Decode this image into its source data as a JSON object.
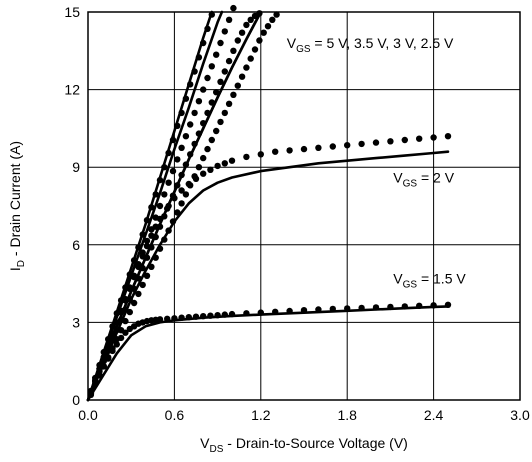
{
  "chart_data": {
    "type": "line",
    "xlabel": "V_DS - Drain-to-Source Voltage (V)",
    "ylabel": "I_D - Drain Current (A)",
    "xlim": [
      0,
      3.0
    ],
    "ylim": [
      0,
      15
    ],
    "x_ticks": [
      0.0,
      0.6,
      1.2,
      1.8,
      2.4,
      3.0
    ],
    "x_tick_labels": [
      "0.0",
      "0.6",
      "1.2",
      "1.8",
      "2.4",
      "3.0"
    ],
    "y_ticks": [
      0,
      3,
      6,
      9,
      12,
      15
    ],
    "y_tick_labels": [
      "0",
      "3",
      "6",
      "9",
      "12",
      "15"
    ],
    "grid": true,
    "colors": {
      "line": "#000000",
      "grid": "#000000",
      "background": "#ffffff"
    },
    "annotations": [
      {
        "id": "vgs-high",
        "text": "V_GS = 5 V, 3.5 V, 3 V, 2.5 V",
        "x": 1.38,
        "y": 13.6
      },
      {
        "id": "vgs-2",
        "text": "V_GS = 2 V",
        "x": 2.12,
        "y": 8.4
      },
      {
        "id": "vgs-1p5",
        "text": "V_GS = 1.5 V",
        "x": 2.12,
        "y": 4.5
      }
    ],
    "series": [
      {
        "style": "solid",
        "x": [
          0,
          0.1,
          0.2,
          0.3,
          0.4,
          0.5,
          0.6,
          0.7,
          0.8,
          0.86
        ],
        "y": [
          0,
          1.7,
          3.4,
          5.1,
          6.8,
          8.6,
          10.4,
          12.2,
          14.0,
          15.0
        ]
      },
      {
        "style": "solid",
        "x": [
          0,
          0.1,
          0.2,
          0.3,
          0.4,
          0.5,
          0.6,
          0.7,
          0.8,
          0.9,
          0.93
        ],
        "y": [
          0,
          1.6,
          3.2,
          4.8,
          6.4,
          8.0,
          9.7,
          11.3,
          13.0,
          14.6,
          15.0
        ]
      },
      {
        "style": "solid",
        "x": [
          0,
          0.1,
          0.2,
          0.3,
          0.4,
          0.5,
          0.6,
          0.7,
          0.8,
          0.9,
          1.0,
          1.1,
          1.2
        ],
        "y": [
          0,
          1.45,
          2.85,
          4.2,
          5.5,
          6.8,
          8.05,
          9.3,
          10.5,
          11.7,
          12.85,
          13.95,
          15.0
        ]
      },
      {
        "style": "solid",
        "x": [
          0,
          0.1,
          0.2,
          0.3,
          0.4,
          0.5,
          0.6,
          0.7,
          0.8,
          0.9,
          1.0,
          1.1,
          1.2
        ],
        "y": [
          0,
          1.45,
          2.85,
          4.2,
          5.5,
          6.8,
          8.05,
          9.3,
          10.5,
          11.7,
          12.85,
          13.95,
          15.0
        ]
      },
      {
        "style": "solid",
        "x": [
          0,
          0.1,
          0.2,
          0.3,
          0.4,
          0.5,
          0.6,
          0.7,
          0.8,
          0.9,
          1.0,
          1.2,
          1.4,
          1.6,
          1.8,
          2.0,
          2.2,
          2.4,
          2.5
        ],
        "y": [
          0,
          1.3,
          2.6,
          3.9,
          5.0,
          6.0,
          6.9,
          7.6,
          8.1,
          8.4,
          8.6,
          8.85,
          9.0,
          9.15,
          9.25,
          9.35,
          9.45,
          9.55,
          9.6
        ]
      },
      {
        "style": "solid",
        "x": [
          0,
          0.1,
          0.2,
          0.3,
          0.4,
          0.5,
          0.6,
          0.8,
          1.0,
          1.2,
          1.4,
          1.6,
          1.8,
          2.0,
          2.2,
          2.4,
          2.5
        ],
        "y": [
          0,
          0.9,
          1.8,
          2.5,
          2.85,
          3.0,
          3.08,
          3.18,
          3.25,
          3.3,
          3.35,
          3.4,
          3.45,
          3.5,
          3.55,
          3.6,
          3.62
        ]
      },
      {
        "style": "dots",
        "x": [
          0.02,
          0.05,
          0.08,
          0.11,
          0.14,
          0.17,
          0.2,
          0.23,
          0.26,
          0.29,
          0.32,
          0.35,
          0.38,
          0.41,
          0.44,
          0.47,
          0.5,
          0.53,
          0.56,
          0.59,
          0.62,
          0.65,
          0.68,
          0.71,
          0.74,
          0.77,
          0.8,
          0.83,
          0.86
        ],
        "y": [
          0.35,
          0.85,
          1.35,
          1.85,
          2.35,
          2.85,
          3.35,
          3.85,
          4.35,
          4.85,
          5.4,
          5.9,
          6.4,
          6.95,
          7.45,
          7.95,
          8.5,
          9.0,
          9.55,
          10.05,
          10.6,
          11.1,
          11.65,
          12.2,
          12.7,
          13.25,
          13.8,
          14.35,
          14.9
        ]
      },
      {
        "style": "dots",
        "x": [
          0.02,
          0.05,
          0.08,
          0.11,
          0.14,
          0.17,
          0.2,
          0.23,
          0.26,
          0.29,
          0.32,
          0.35,
          0.38,
          0.41,
          0.44,
          0.47,
          0.5,
          0.53,
          0.56,
          0.59,
          0.62,
          0.65,
          0.68,
          0.71,
          0.74,
          0.77,
          0.8,
          0.83,
          0.86,
          0.89,
          0.92,
          0.95,
          0.98,
          1.01
        ],
        "y": [
          0.3,
          0.75,
          1.2,
          1.65,
          2.1,
          2.55,
          3.0,
          3.45,
          3.9,
          4.35,
          4.8,
          5.25,
          5.7,
          6.15,
          6.6,
          7.05,
          7.5,
          7.95,
          8.4,
          8.85,
          9.3,
          9.75,
          10.2,
          10.65,
          11.1,
          11.55,
          12.0,
          12.45,
          12.9,
          13.35,
          13.8,
          14.25,
          14.7,
          15.15
        ]
      },
      {
        "style": "dots",
        "x": [
          0.02,
          0.05,
          0.08,
          0.11,
          0.14,
          0.17,
          0.2,
          0.23,
          0.26,
          0.29,
          0.32,
          0.35,
          0.38,
          0.41,
          0.44,
          0.47,
          0.5,
          0.53,
          0.56,
          0.59,
          0.62,
          0.65,
          0.68,
          0.71,
          0.74,
          0.77,
          0.8,
          0.83,
          0.86,
          0.89,
          0.92,
          0.95,
          0.98,
          1.01,
          1.04,
          1.07,
          1.1,
          1.13,
          1.16,
          1.19
        ],
        "y": [
          0.25,
          0.7,
          1.1,
          1.5,
          1.9,
          2.3,
          2.7,
          3.1,
          3.5,
          3.9,
          4.3,
          4.7,
          5.1,
          5.5,
          5.9,
          6.3,
          6.7,
          7.1,
          7.5,
          7.9,
          8.3,
          8.7,
          9.1,
          9.5,
          9.9,
          10.3,
          10.7,
          11.1,
          11.5,
          11.9,
          12.3,
          12.7,
          13.1,
          13.5,
          13.9,
          14.2,
          14.5,
          14.7,
          14.85,
          14.95
        ]
      },
      {
        "style": "dots",
        "x": [
          0.02,
          0.05,
          0.08,
          0.11,
          0.14,
          0.17,
          0.2,
          0.23,
          0.26,
          0.29,
          0.32,
          0.35,
          0.38,
          0.41,
          0.44,
          0.47,
          0.5,
          0.53,
          0.56,
          0.59,
          0.62,
          0.65,
          0.68,
          0.71,
          0.74,
          0.77,
          0.8,
          0.83,
          0.86,
          0.89,
          0.92,
          0.95,
          0.98,
          1.01,
          1.04,
          1.07,
          1.1,
          1.13,
          1.16,
          1.19,
          1.22,
          1.25,
          1.28,
          1.31
        ],
        "y": [
          0.2,
          0.6,
          0.95,
          1.3,
          1.65,
          2.0,
          2.35,
          2.7,
          3.05,
          3.4,
          3.75,
          4.1,
          4.45,
          4.8,
          5.15,
          5.5,
          5.85,
          6.2,
          6.55,
          6.9,
          7.25,
          7.6,
          7.95,
          8.3,
          8.65,
          9.0,
          9.35,
          9.7,
          10.05,
          10.4,
          10.75,
          11.1,
          11.45,
          11.8,
          12.15,
          12.5,
          12.85,
          13.2,
          13.55,
          13.9,
          14.2,
          14.45,
          14.7,
          14.9
        ]
      },
      {
        "style": "dots",
        "x": [
          0.02,
          0.05,
          0.08,
          0.11,
          0.14,
          0.17,
          0.2,
          0.23,
          0.26,
          0.29,
          0.32,
          0.35,
          0.38,
          0.41,
          0.44,
          0.47,
          0.5,
          0.55,
          0.6,
          0.65,
          0.7,
          0.75,
          0.8,
          0.85,
          0.9,
          0.95,
          1.0,
          1.1,
          1.2,
          1.3,
          1.4,
          1.5,
          1.6,
          1.7,
          1.8,
          1.9,
          2.0,
          2.1,
          2.2,
          2.3,
          2.4,
          2.5
        ],
        "y": [
          0.3,
          0.75,
          1.2,
          1.65,
          2.1,
          2.55,
          3.0,
          3.4,
          3.85,
          4.3,
          4.75,
          5.15,
          5.55,
          5.95,
          6.35,
          6.7,
          7.0,
          7.4,
          7.8,
          8.1,
          8.35,
          8.55,
          8.75,
          8.9,
          9.05,
          9.15,
          9.25,
          9.4,
          9.5,
          9.6,
          9.65,
          9.7,
          9.75,
          9.8,
          9.85,
          9.9,
          9.95,
          10.0,
          10.05,
          10.1,
          10.15,
          10.2
        ]
      },
      {
        "style": "dots",
        "x": [
          0.02,
          0.05,
          0.08,
          0.11,
          0.14,
          0.17,
          0.2,
          0.23,
          0.26,
          0.29,
          0.32,
          0.35,
          0.38,
          0.41,
          0.44,
          0.47,
          0.5,
          0.55,
          0.6,
          0.65,
          0.7,
          0.75,
          0.8,
          0.85,
          0.9,
          0.95,
          1.0,
          1.1,
          1.2,
          1.3,
          1.4,
          1.5,
          1.6,
          1.7,
          1.8,
          1.9,
          2.0,
          2.1,
          2.2,
          2.3,
          2.4,
          2.5
        ],
        "y": [
          0.25,
          0.6,
          0.95,
          1.3,
          1.6,
          1.9,
          2.15,
          2.4,
          2.6,
          2.75,
          2.85,
          2.95,
          3.0,
          3.05,
          3.08,
          3.1,
          3.12,
          3.14,
          3.16,
          3.18,
          3.2,
          3.22,
          3.24,
          3.26,
          3.28,
          3.3,
          3.32,
          3.35,
          3.38,
          3.41,
          3.44,
          3.47,
          3.5,
          3.52,
          3.54,
          3.56,
          3.58,
          3.6,
          3.62,
          3.64,
          3.66,
          3.68
        ]
      }
    ]
  }
}
